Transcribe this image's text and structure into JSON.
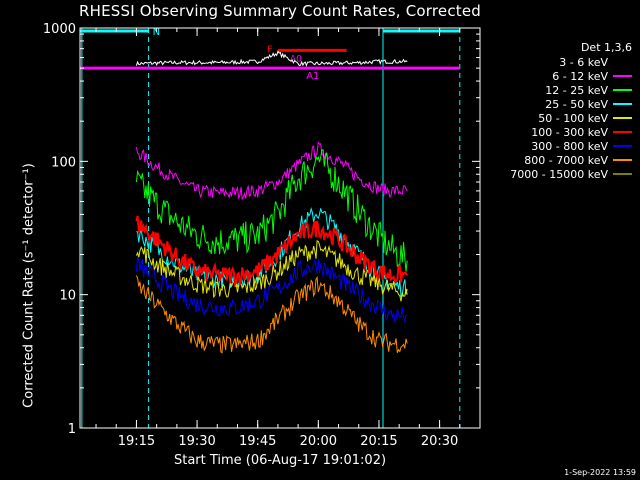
{
  "chart_data": {
    "type": "line",
    "title": "RHESSI Observing Summary Count Rates, Corrected",
    "xlabel": "Start Time (06-Aug-17 19:01:02)",
    "ylabel": "Corrected Count Rate (s⁻¹ detector⁻¹)",
    "yscale": "log",
    "ylim": [
      1,
      1000
    ],
    "xlim": [
      "19:01:02",
      "20:40:00"
    ],
    "x_ticks": [
      "19:15",
      "19:30",
      "19:45",
      "20:00",
      "20:15",
      "20:30"
    ],
    "y_ticks": [
      "1",
      "10",
      "100",
      "1000"
    ],
    "legend_title": "Det 1,3,6",
    "legend_position": "right",
    "footer_stamp": "1-Sep-2022 13:59",
    "x_times": [
      "19:15",
      "19:20",
      "19:25",
      "19:30",
      "19:35",
      "19:40",
      "19:45",
      "19:50",
      "19:55",
      "20:00",
      "20:05",
      "20:10",
      "20:15",
      "20:18",
      "20:22"
    ],
    "series": [
      {
        "name": "3 - 6 keV",
        "color": "#000000",
        "values": [
          540,
          545,
          550,
          550,
          550,
          555,
          560,
          650,
          540,
          540,
          545,
          550,
          560,
          560,
          560
        ]
      },
      {
        "name": "6 - 12 keV",
        "color": "#ff00ff",
        "values": [
          120,
          90,
          72,
          60,
          58,
          58,
          60,
          70,
          95,
          125,
          100,
          75,
          62,
          60,
          60
        ]
      },
      {
        "name": "12 - 25 keV",
        "color": "#00ff00",
        "values": [
          70,
          48,
          35,
          28,
          25,
          26,
          28,
          40,
          75,
          105,
          70,
          42,
          27,
          22,
          18
        ]
      },
      {
        "name": "25 - 50 keV",
        "color": "#00ffff",
        "values": [
          30,
          22,
          17,
          14,
          13,
          13,
          14,
          20,
          32,
          42,
          30,
          20,
          14,
          12,
          11
        ]
      },
      {
        "name": "50 - 100 keV",
        "color": "#e6e600",
        "values": [
          23,
          17,
          14,
          12,
          11,
          11,
          12,
          15,
          20,
          22,
          18,
          14,
          12,
          11,
          10
        ]
      },
      {
        "name": "100 - 300 keV",
        "color": "#ff0000",
        "values": [
          35,
          26,
          19,
          15,
          14,
          14,
          15,
          20,
          28,
          32,
          26,
          19,
          15,
          14,
          14
        ]
      },
      {
        "name": "300 - 800 keV",
        "color": "#0000ff",
        "values": [
          17,
          13,
          10,
          8.5,
          8,
          8,
          9,
          11,
          15,
          17,
          13,
          10,
          8,
          7,
          7
        ]
      },
      {
        "name": "800 - 7000 keV",
        "color": "#ff8c00",
        "values": [
          12,
          8.5,
          6,
          4.5,
          4.2,
          4.2,
          4.5,
          6.5,
          9.5,
          12,
          9,
          6,
          4.5,
          4.3,
          4.3
        ]
      },
      {
        "name": "7000 - 15000 keV",
        "color": "#808000",
        "values": []
      }
    ],
    "annotations": {
      "night_markers": [
        {
          "label": "N",
          "start": "19:01:02",
          "end": "19:18",
          "level": 950
        },
        {
          "label": "",
          "start": "20:16",
          "end": "20:35",
          "level": 950
        }
      ],
      "attenuator_bar": {
        "label": "A1",
        "level": 500
      },
      "flare_bar": {
        "label": "F",
        "start": "19:50",
        "end": "20:07",
        "level": 680
      },
      "a0_label": "A0",
      "vertical_lines_solid": [
        "19:01:30",
        "20:16"
      ],
      "vertical_lines_dashed": [
        "19:18",
        "20:35"
      ]
    }
  }
}
